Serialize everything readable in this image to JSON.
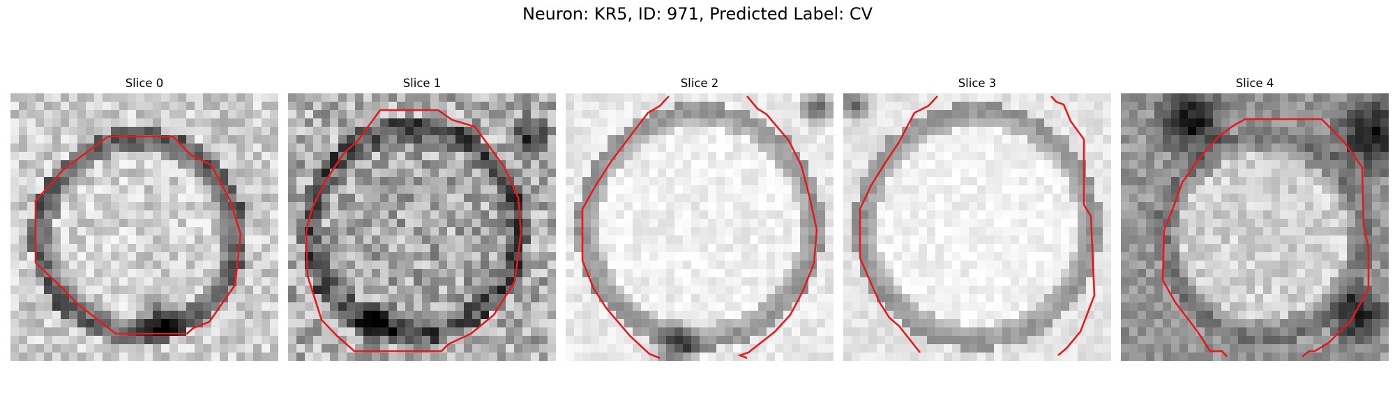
{
  "figure": {
    "title": "Neuron: KR5, ID: 971, Predicted Label: CV"
  },
  "panels": [
    {
      "label": "Slice 0"
    },
    {
      "label": "Slice 1"
    },
    {
      "label": "Slice 2"
    },
    {
      "label": "Slice 3"
    },
    {
      "label": "Slice 4"
    }
  ],
  "colors": {
    "contour": "#e41a1c",
    "background": "#ffffff"
  }
}
